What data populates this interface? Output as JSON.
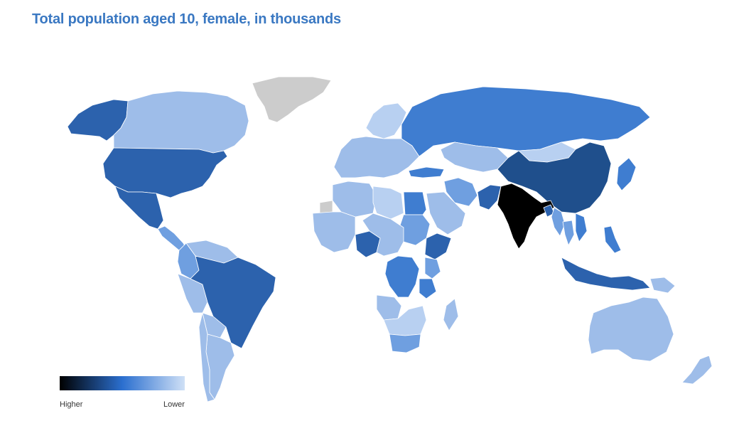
{
  "title": "Total population aged 10, female, in thousands",
  "legend": {
    "high_label": "Higher",
    "low_label": "Lower",
    "gradient": [
      "#000000",
      "#2b6fcf",
      "#cfe0f6"
    ]
  },
  "colors": {
    "no_data": "#cccccc",
    "level_1": "#000000",
    "level_2": "#1f4f8c",
    "level_3": "#2c62ad",
    "level_4": "#3f7dd0",
    "level_5": "#6f9fe0",
    "level_6": "#9ebde9",
    "level_7": "#b8d0f1"
  },
  "regions": [
    {
      "id": "india",
      "level": "level_1"
    },
    {
      "id": "china",
      "level": "level_2"
    },
    {
      "id": "usa",
      "level": "level_3"
    },
    {
      "id": "brazil",
      "level": "level_3"
    },
    {
      "id": "alaska",
      "level": "level_3"
    },
    {
      "id": "mexico",
      "level": "level_3"
    },
    {
      "id": "nigeria",
      "level": "level_3"
    },
    {
      "id": "ethiopia",
      "level": "level_3"
    },
    {
      "id": "pakistan",
      "level": "level_3"
    },
    {
      "id": "indonesia",
      "level": "level_3"
    },
    {
      "id": "bangladesh",
      "level": "level_3"
    },
    {
      "id": "drc",
      "level": "level_4"
    },
    {
      "id": "russia",
      "level": "level_4"
    },
    {
      "id": "egypt",
      "level": "level_4"
    },
    {
      "id": "philippines",
      "level": "level_4"
    },
    {
      "id": "tanzania",
      "level": "level_4"
    },
    {
      "id": "colombia",
      "level": "level_5"
    },
    {
      "id": "sudan",
      "level": "level_5"
    },
    {
      "id": "turkey",
      "level": "level_4"
    },
    {
      "id": "iran",
      "level": "level_5"
    },
    {
      "id": "vietnam",
      "level": "level_4"
    },
    {
      "id": "japan",
      "level": "level_4"
    },
    {
      "id": "canada",
      "level": "level_6"
    },
    {
      "id": "australia",
      "level": "level_6"
    },
    {
      "id": "argentina",
      "level": "level_6"
    },
    {
      "id": "peru",
      "level": "level_6"
    },
    {
      "id": "venezuela",
      "level": "level_6"
    },
    {
      "id": "south_africa",
      "level": "level_5"
    },
    {
      "id": "kazakhstan",
      "level": "level_6"
    },
    {
      "id": "mongolia",
      "level": "level_7"
    },
    {
      "id": "saudi_arabia",
      "level": "level_6"
    },
    {
      "id": "algeria",
      "level": "level_6"
    },
    {
      "id": "libya",
      "level": "level_7"
    },
    {
      "id": "europe",
      "level": "level_6"
    },
    {
      "id": "scandinavia",
      "level": "level_7"
    },
    {
      "id": "west_africa",
      "level": "level_6"
    },
    {
      "id": "angola",
      "level": "level_6"
    },
    {
      "id": "kenya",
      "level": "level_5"
    },
    {
      "id": "madagascar",
      "level": "level_6"
    },
    {
      "id": "central_africa",
      "level": "level_6"
    },
    {
      "id": "southern_africa",
      "level": "level_7"
    },
    {
      "id": "thailand",
      "level": "level_5"
    },
    {
      "id": "myanmar",
      "level": "level_5"
    },
    {
      "id": "new_zealand",
      "level": "level_6"
    },
    {
      "id": "papua",
      "level": "level_6"
    },
    {
      "id": "chile",
      "level": "level_6"
    },
    {
      "id": "bolivia",
      "level": "level_6"
    },
    {
      "id": "central_america",
      "level": "level_5"
    },
    {
      "id": "greenland",
      "level": "no_data"
    },
    {
      "id": "western_sahara",
      "level": "no_data"
    }
  ]
}
